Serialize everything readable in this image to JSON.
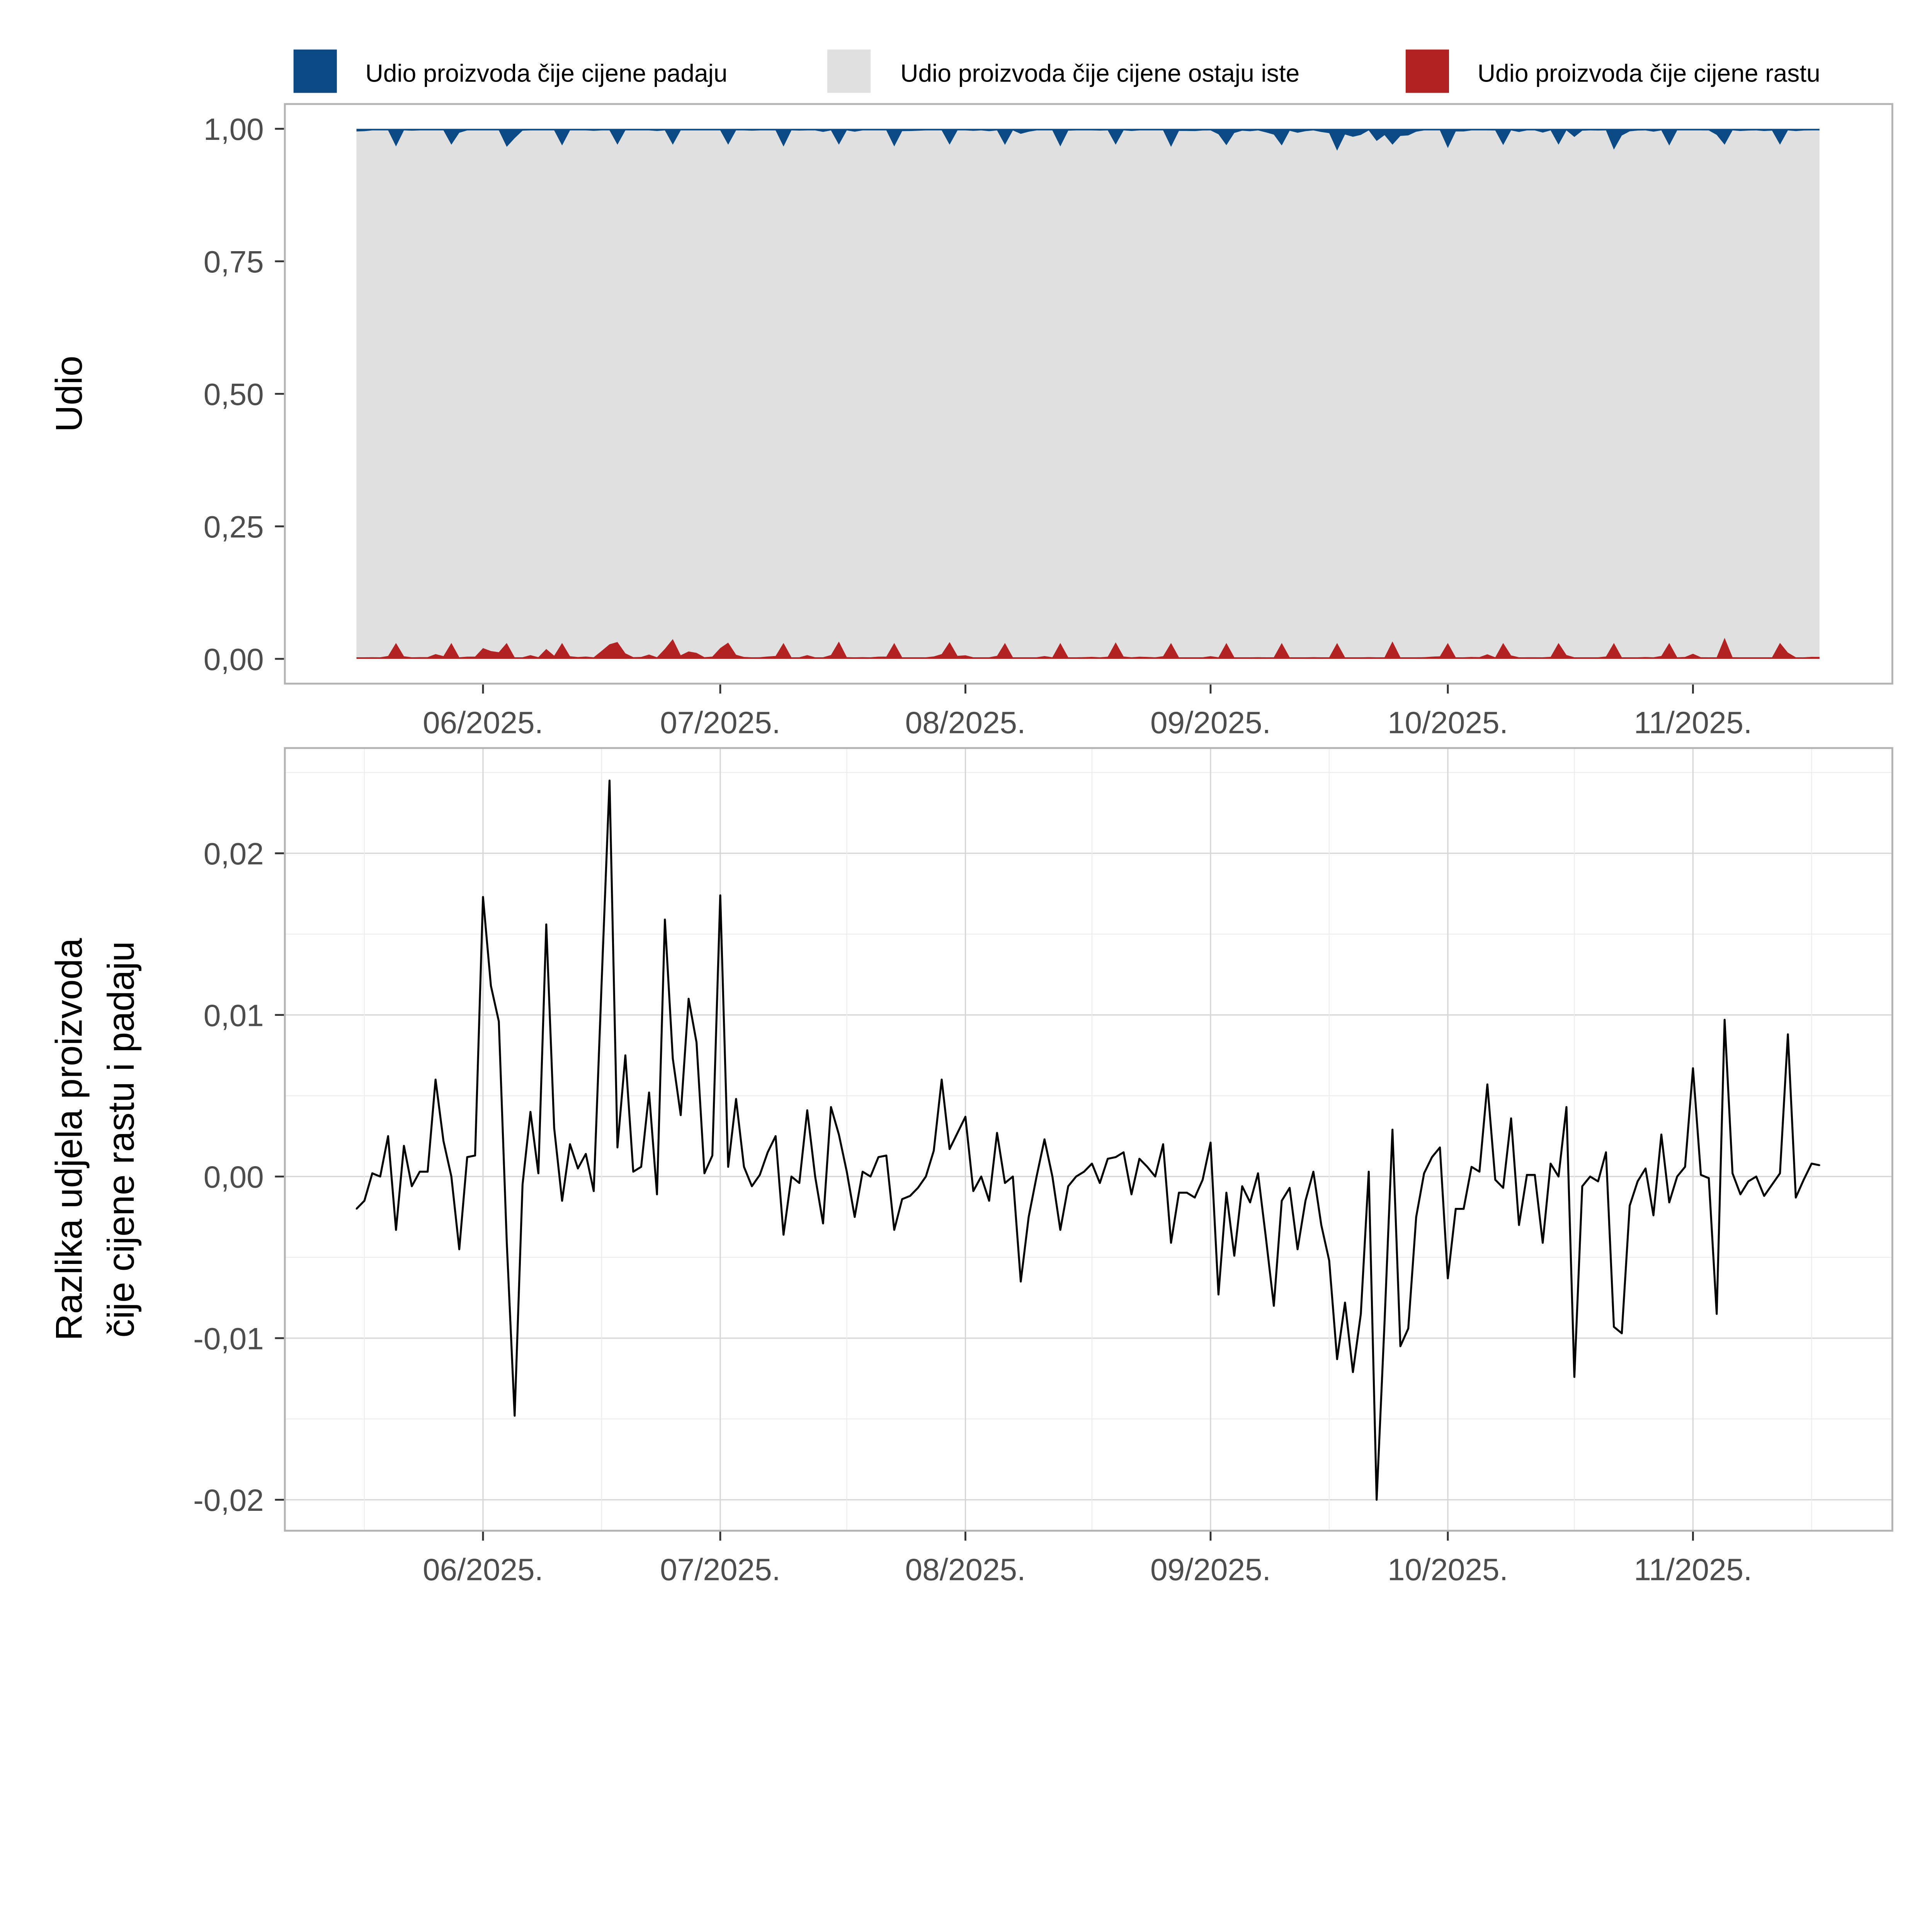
{
  "legend": [
    {
      "label": "Udio proizvoda čije cijene padaju",
      "color": "#0b4a84"
    },
    {
      "label": "Udio proizvoda čije cijene ostaju iste",
      "color": "#e0e0e0"
    },
    {
      "label": "Udio proizvoda čije cijene rastu",
      "color": "#b22222"
    }
  ],
  "chart_data": [
    {
      "type": "area",
      "title": "",
      "ylabel": "Udio",
      "ylim": [
        0,
        1
      ],
      "yticks": [
        "0,00",
        "0,25",
        "0,50",
        "0,75",
        "1,00"
      ],
      "ytick_values": [
        0,
        0.25,
        0.5,
        0.75,
        1
      ],
      "xticks": [
        "06/2025.",
        "07/2025.",
        "08/2025.",
        "09/2025.",
        "10/2025.",
        "11/2025."
      ],
      "xtick_dates": [
        "2025-06-01",
        "2025-07-01",
        "2025-08-01",
        "2025-09-01",
        "2025-10-01",
        "2025-11-01"
      ],
      "stacking": "proportion",
      "rise_baseline": 0.003,
      "weekly_peak": 0.03,
      "weekly_peak_offset_days": 5
    },
    {
      "type": "line",
      "ylabel_lines": [
        "Razlika udjela proizvoda",
        "čije cijene rastu i padaju"
      ],
      "ylim": [
        -0.021,
        0.026
      ],
      "yticks": [
        "-0,02",
        "-0,01",
        "0,00",
        "0,01",
        "0,02"
      ],
      "ytick_values": [
        -0.02,
        -0.01,
        0,
        0.01,
        0.02
      ],
      "xticks": [
        "06/2025.",
        "07/2025.",
        "08/2025.",
        "09/2025.",
        "10/2025.",
        "11/2025."
      ],
      "xtick_dates": [
        "2025-06-01",
        "2025-07-01",
        "2025-08-01",
        "2025-09-01",
        "2025-10-01",
        "2025-11-01"
      ],
      "grid": true,
      "x_start": "2025-05-16",
      "x_step_days": 1,
      "values": [
        -0.002,
        -0.0015,
        0.0002,
        0.0,
        0.0025,
        -0.0033,
        0.0019,
        -0.0006,
        0.0003,
        0.0003,
        0.006,
        0.0022,
        0.0,
        -0.0045,
        0.0012,
        0.0013,
        0.0173,
        0.0118,
        0.0096,
        -0.004,
        -0.0148,
        -0.0005,
        0.004,
        0.0002,
        0.0156,
        0.003,
        -0.0015,
        0.002,
        0.0005,
        0.0014,
        -0.0009,
        0.012,
        0.0245,
        0.0018,
        0.0075,
        0.0003,
        0.0006,
        0.0052,
        -0.0011,
        0.0159,
        0.0073,
        0.0038,
        0.011,
        0.0083,
        0.0002,
        0.0013,
        0.0174,
        0.0006,
        0.0048,
        0.0006,
        -0.0006,
        0.0001,
        0.0015,
        0.0025,
        -0.0036,
        0.0,
        -0.0004,
        0.0041,
        0.0,
        -0.0029,
        0.0043,
        0.0026,
        0.0003,
        -0.0025,
        0.0003,
        0.0,
        0.0012,
        0.0013,
        -0.0033,
        -0.0014,
        -0.0012,
        -0.0007,
        0.0,
        0.0016,
        0.006,
        0.0017,
        0.0027,
        0.0037,
        -0.0009,
        0.0,
        -0.0015,
        0.0027,
        -0.0004,
        0.0,
        -0.0065,
        -0.0025,
        0.0,
        0.0023,
        0.0,
        -0.0033,
        -0.0006,
        0.0,
        0.0003,
        0.0008,
        -0.0004,
        0.0011,
        0.0012,
        0.0015,
        -0.0011,
        0.0011,
        0.0006,
        0.0,
        0.002,
        -0.0041,
        -0.001,
        -0.001,
        -0.0013,
        -0.0002,
        0.0021,
        -0.0073,
        -0.001,
        -0.0049,
        -0.0006,
        -0.0016,
        0.0002,
        -0.0038,
        -0.008,
        -0.0015,
        -0.0007,
        -0.0045,
        -0.0015,
        0.0003,
        -0.003,
        -0.0052,
        -0.0113,
        -0.0078,
        -0.0121,
        -0.0085,
        0.0003,
        -0.02,
        -0.009,
        0.0029,
        -0.0105,
        -0.0094,
        -0.0025,
        0.0002,
        0.0012,
        0.0018,
        -0.0063,
        -0.002,
        -0.002,
        0.0006,
        0.0003,
        0.0057,
        -0.0002,
        -0.0007,
        0.0036,
        -0.003,
        0.0001,
        0.0001,
        -0.0041,
        0.0008,
        0.0,
        0.0043,
        -0.0124,
        -0.0006,
        0.0,
        -0.0003,
        0.0015,
        -0.0093,
        -0.0097,
        -0.0018,
        -0.0003,
        0.0005,
        -0.0024,
        0.0026,
        -0.0016,
        0.0,
        0.0006,
        0.0067,
        0.0001,
        -0.0001,
        -0.0085,
        0.0097,
        0.0002,
        -0.0011,
        -0.0003,
        0.0,
        -0.0012,
        -0.0005,
        0.0002,
        0.0088,
        -0.0013,
        -0.0002,
        0.0008,
        0.0007
      ]
    }
  ]
}
